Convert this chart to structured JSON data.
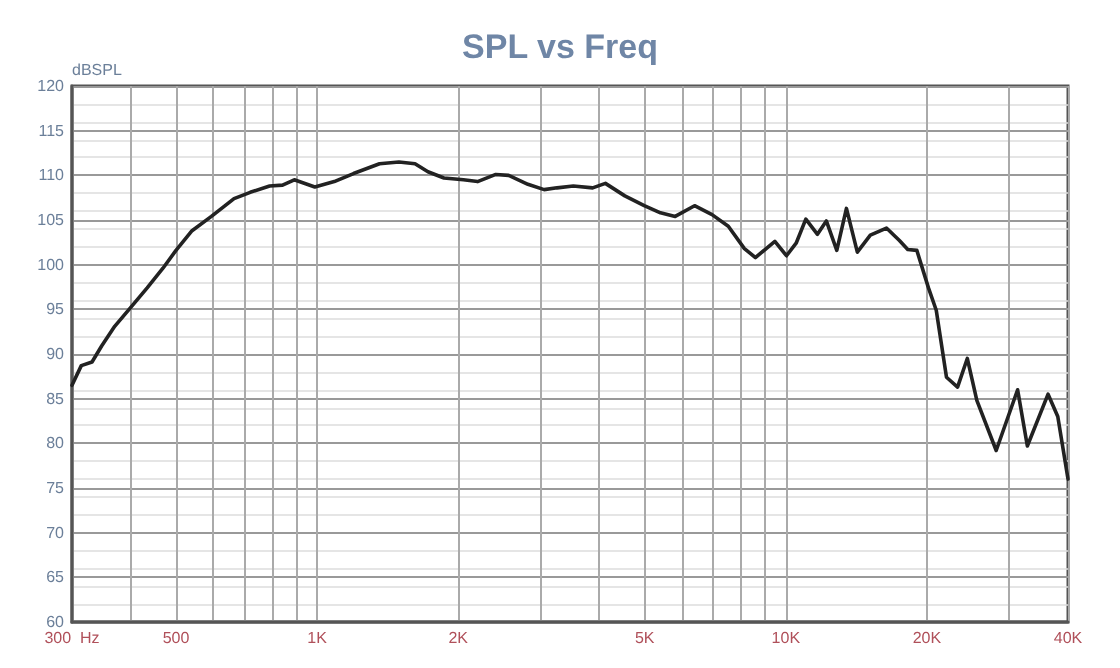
{
  "chart_data": {
    "type": "line",
    "title": "SPL vs Freq",
    "ylabel": "dBSPL",
    "log": "x",
    "grid": true,
    "marker": "none",
    "line_style": "solid",
    "xlim": [
      300,
      40000
    ],
    "ylim": [
      60,
      120
    ],
    "xticks": [
      {
        "value": 300,
        "label": "300  Hz"
      },
      {
        "value": 400,
        "label": null
      },
      {
        "value": 500,
        "label": "500"
      },
      {
        "value": 600,
        "label": null
      },
      {
        "value": 700,
        "label": null
      },
      {
        "value": 800,
        "label": null
      },
      {
        "value": 900,
        "label": null
      },
      {
        "value": 1000,
        "label": "1K"
      },
      {
        "value": 2000,
        "label": "2K"
      },
      {
        "value": 3000,
        "label": null
      },
      {
        "value": 4000,
        "label": null
      },
      {
        "value": 5000,
        "label": "5K"
      },
      {
        "value": 6000,
        "label": null
      },
      {
        "value": 7000,
        "label": null
      },
      {
        "value": 8000,
        "label": null
      },
      {
        "value": 9000,
        "label": null
      },
      {
        "value": 10000,
        "label": "10K"
      },
      {
        "value": 20000,
        "label": "20K"
      },
      {
        "value": 30000,
        "label": null
      },
      {
        "value": 40000,
        "label": "40K"
      }
    ],
    "yticks": [
      60,
      65,
      70,
      75,
      80,
      85,
      90,
      95,
      100,
      105,
      110,
      115,
      120
    ],
    "series": [
      {
        "color": "#222222",
        "x": [
          300,
          314,
          331,
          347,
          370,
          400,
          434,
          469,
          500,
          541,
          595,
          665,
          720,
          792,
          844,
          894,
          989,
          1088,
          1196,
          1359,
          1495,
          1618,
          1724,
          1865,
          2052,
          2200,
          2406,
          2562,
          2817,
          3051,
          3250,
          3521,
          3872,
          4122,
          4535,
          4988,
          5403,
          5808,
          6387,
          6960,
          7539,
          8160,
          8613,
          9477,
          10032,
          10521,
          11034,
          11682,
          12204,
          12846,
          13470,
          14211,
          15147,
          16395,
          17475,
          18204,
          19035,
          20154,
          20940,
          22020,
          23250,
          24390,
          25560,
          28110,
          31230,
          32760,
          36270,
          38040,
          40000
        ],
        "values": [
          86.5,
          88.7,
          89.1,
          90.9,
          93.1,
          95.2,
          97.4,
          99.6,
          101.6,
          103.8,
          105.4,
          107.4,
          108.1,
          108.8,
          108.9,
          109.5,
          108.7,
          109.3,
          110.2,
          111.3,
          111.5,
          111.3,
          110.4,
          109.7,
          109.5,
          109.3,
          110.1,
          110,
          109,
          108.4,
          108.6,
          108.8,
          108.6,
          109.1,
          107.7,
          106.6,
          105.8,
          105.4,
          106.6,
          105.6,
          104.3,
          101.8,
          100.8,
          102.6,
          101,
          102.4,
          105.1,
          103.4,
          104.9,
          101.6,
          106.3,
          101.4,
          103.3,
          104.1,
          102.7,
          101.7,
          101.6,
          97.4,
          94.9,
          87.4,
          86.3,
          89.5,
          84.8,
          79.2,
          86,
          79.7,
          85.5,
          83,
          76
        ]
      }
    ]
  }
}
